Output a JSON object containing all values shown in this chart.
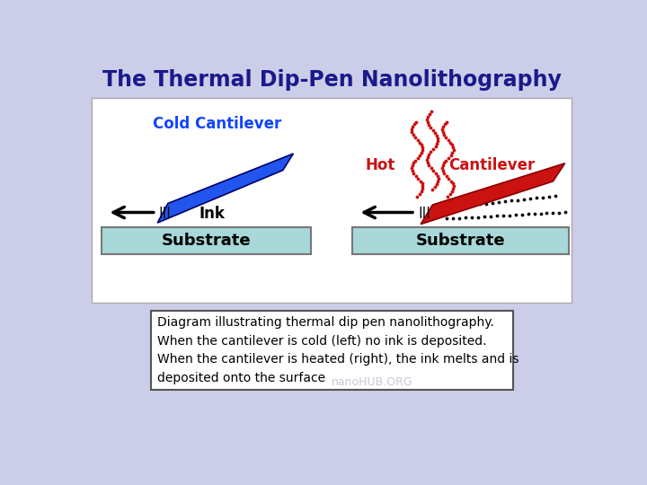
{
  "title": "The Thermal Dip-Pen Nanolithography",
  "title_color": "#1a1a8c",
  "bg_color": "#cccde8",
  "panel_bg": "#ffffff",
  "substrate_color": "#a8d8d8",
  "cold_cantilever_color": "#2255ee",
  "hot_cantilever_color": "#cc1111",
  "cold_label": "Cold Cantilever",
  "cold_label_color": "#1144ff",
  "hot_label": "Hot",
  "hot_label_color": "#cc1111",
  "cantilever_label": "Cantilever",
  "cantilever_label_color": "#cc1111",
  "ink_label": "Ink",
  "substrate_label": "Substrate",
  "description_lines": [
    "Diagram illustrating thermal dip pen nanolithography.",
    "When the cantilever is cold (left) no ink is deposited.",
    "When the cantilever is heated (right), the ink melts and is",
    "deposited onto the surface"
  ],
  "watermark": "nanoHUB.ORG"
}
